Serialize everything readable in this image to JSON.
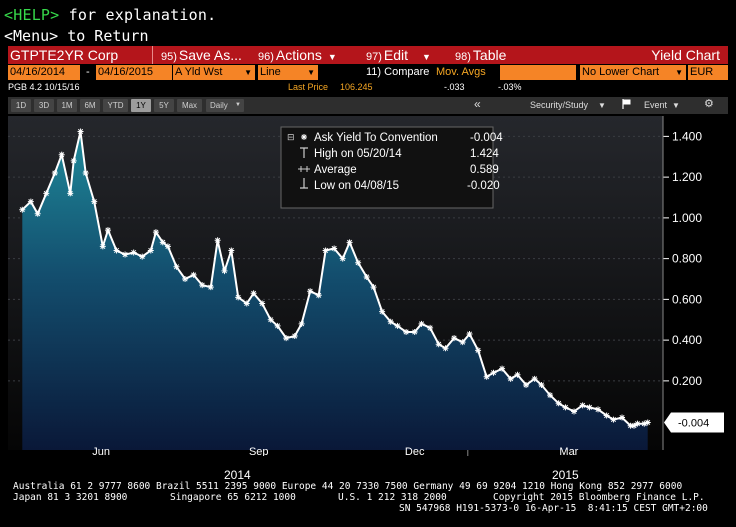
{
  "command": {
    "help_key": "<HELP>",
    "help_text": " for explanation.",
    "menu_key": "<Menu>",
    "menu_text": " to Return"
  },
  "menubar": {
    "security": "GTPTE2YR Corp",
    "save": {
      "num": "95)",
      "label": "Save As..."
    },
    "actions": {
      "num": "96)",
      "label": "Actions"
    },
    "edit": {
      "num": "97)",
      "label": "Edit"
    },
    "table": {
      "num": "98)",
      "label": "Table"
    },
    "title": "Yield Chart"
  },
  "options": {
    "start_date": "04/16/2014",
    "dash": "-",
    "end_date": "04/16/2015",
    "field": "A Yld Wst",
    "chart_style": "Line",
    "compare_num": "11)",
    "compare_label": "Compare",
    "compare_value": "Mov. Avgs",
    "lower_chart": "No Lower Chart",
    "currency": "EUR"
  },
  "info": {
    "security_desc": "PGB 4.2 10/15/16",
    "last_price_label": "Last Price",
    "last_price": "106.245",
    "change": "-.033",
    "change_pct": "-.03%"
  },
  "toolbar": {
    "periods": [
      "1D",
      "3D",
      "1M",
      "6M",
      "YTD",
      "1Y",
      "5Y",
      "Max"
    ],
    "active_period": "1Y",
    "frequency": "Daily",
    "collapse": "«",
    "security_study": "Security/Study",
    "event": "Event"
  },
  "legend": {
    "ask_label": "Ask Yield To Convention",
    "ask_value": "-0.004",
    "high_label": "High on 05/20/14",
    "high_value": "1.424",
    "avg_label": "Average",
    "avg_value": "0.589",
    "low_label": "Low on 04/08/15",
    "low_value": "-0.020"
  },
  "chart_data": {
    "type": "area",
    "ylim": [
      -0.1,
      1.5
    ],
    "yticks": [
      0.2,
      0.4,
      0.6,
      0.8,
      1.0,
      1.2,
      1.4
    ],
    "ytick_labels": [
      "0.200",
      "0.400",
      "0.600",
      "0.800",
      "1.000",
      "1.200",
      "1.400"
    ],
    "xlabels_month": [
      {
        "label": "Jun",
        "date": "2014-06-01"
      },
      {
        "label": "Sep",
        "date": "2014-09-01"
      },
      {
        "label": "Dec",
        "date": "2014-12-01"
      },
      {
        "label": "Mar",
        "date": "2015-03-01"
      }
    ],
    "xlabels_year": [
      {
        "label": "2014",
        "date": "2014-09-08"
      },
      {
        "label": "2015",
        "date": "2015-03-01"
      }
    ],
    "year_divider_date": "2015-01-01",
    "current_value_label": "-0.004",
    "current_value": -0.004,
    "colors": {
      "line": "#ffffff",
      "fill_top": "#1d7a8c",
      "fill_bottom": "#0b1a3a",
      "bg_top": "#202226",
      "bg_bottom": "#000000"
    },
    "series": [
      {
        "x": [
          "2014-04-16",
          "2014-04-21",
          "2014-04-25",
          "2014-04-30",
          "2014-05-05",
          "2014-05-09",
          "2014-05-14",
          "2014-05-16",
          "2014-05-20",
          "2014-05-23",
          "2014-05-28",
          "2014-06-02",
          "2014-06-05",
          "2014-06-10",
          "2014-06-15",
          "2014-06-20",
          "2014-06-25",
          "2014-06-30",
          "2014-07-03",
          "2014-07-07",
          "2014-07-10",
          "2014-07-15",
          "2014-07-20",
          "2014-07-25",
          "2014-07-30",
          "2014-08-04",
          "2014-08-08",
          "2014-08-12",
          "2014-08-16",
          "2014-08-20",
          "2014-08-25",
          "2014-08-29",
          "2014-09-03",
          "2014-09-08",
          "2014-09-12",
          "2014-09-17",
          "2014-09-22",
          "2014-09-26",
          "2014-10-01",
          "2014-10-06",
          "2014-10-10",
          "2014-10-15",
          "2014-10-20",
          "2014-10-24",
          "2014-10-29",
          "2014-11-03",
          "2014-11-07",
          "2014-11-12",
          "2014-11-17",
          "2014-11-21",
          "2014-11-26",
          "2014-12-01",
          "2014-12-05",
          "2014-12-10",
          "2014-12-15",
          "2014-12-19",
          "2014-12-24",
          "2014-12-29",
          "2015-01-02",
          "2015-01-07",
          "2015-01-12",
          "2015-01-16",
          "2015-01-21",
          "2015-01-26",
          "2015-01-30",
          "2015-02-04",
          "2015-02-09",
          "2015-02-13",
          "2015-02-18",
          "2015-02-23",
          "2015-02-27",
          "2015-03-04",
          "2015-03-09",
          "2015-03-13",
          "2015-03-18",
          "2015-03-23",
          "2015-03-27",
          "2015-04-01",
          "2015-04-06",
          "2015-04-08",
          "2015-04-10",
          "2015-04-14",
          "2015-04-16"
        ],
        "y": [
          1.04,
          1.08,
          1.02,
          1.12,
          1.22,
          1.31,
          1.12,
          1.28,
          1.424,
          1.22,
          1.08,
          0.86,
          0.94,
          0.84,
          0.82,
          0.83,
          0.81,
          0.84,
          0.93,
          0.88,
          0.86,
          0.76,
          0.7,
          0.72,
          0.67,
          0.66,
          0.89,
          0.74,
          0.84,
          0.61,
          0.58,
          0.63,
          0.58,
          0.5,
          0.47,
          0.41,
          0.42,
          0.48,
          0.64,
          0.62,
          0.84,
          0.85,
          0.8,
          0.88,
          0.78,
          0.71,
          0.66,
          0.54,
          0.49,
          0.47,
          0.44,
          0.44,
          0.48,
          0.46,
          0.38,
          0.36,
          0.41,
          0.39,
          0.43,
          0.35,
          0.22,
          0.24,
          0.26,
          0.21,
          0.23,
          0.18,
          0.21,
          0.18,
          0.13,
          0.09,
          0.07,
          0.05,
          0.08,
          0.07,
          0.06,
          0.03,
          0.01,
          0.02,
          -0.02,
          -0.02,
          -0.01,
          -0.01,
          -0.004
        ]
      }
    ]
  },
  "footer": {
    "line1": "Australia 61 2 9777 8600 Brazil 5511 2395 9000 Europe 44 20 7330 7500 Germany 49 69 9204 1210 Hong Kong 852 2977 6000",
    "line2_left": "Japan 81 3 3201 8900",
    "line2_mid": "Singapore 65 6212 1000",
    "line2_us": "U.S. 1 212 318 2000",
    "line2_copy": "Copyright 2015 Bloomberg Finance L.P.",
    "line3": "SN 547968 H191-5373-0 16-Apr-15  8:41:15 CEST GMT+2:00"
  }
}
